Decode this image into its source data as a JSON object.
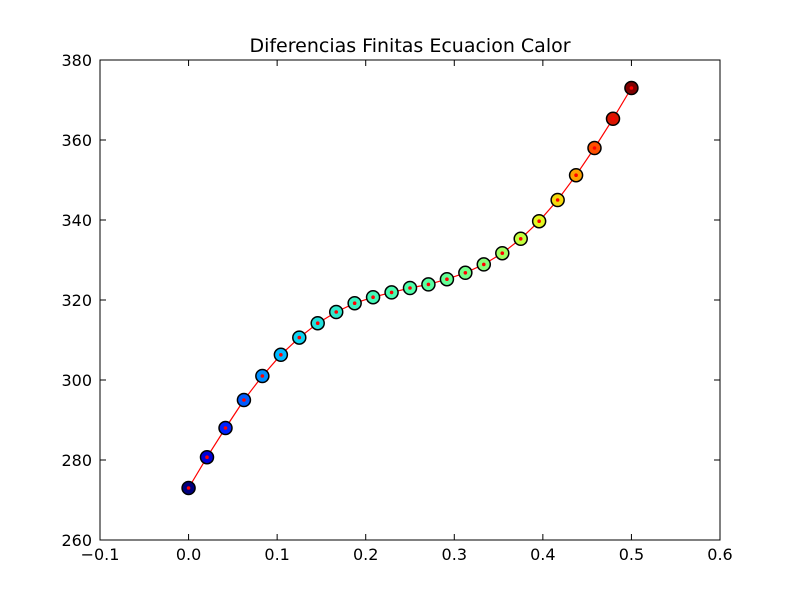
{
  "chart_data": {
    "type": "line",
    "title": "Diferencias Finitas Ecuacion Calor",
    "xlabel": "",
    "ylabel": "",
    "xlim": [
      -0.1,
      0.6
    ],
    "ylim": [
      260,
      380
    ],
    "xticks": [
      -0.1,
      0.0,
      0.1,
      0.2,
      0.3,
      0.4,
      0.5,
      0.6
    ],
    "yticks": [
      260,
      280,
      300,
      320,
      340,
      360,
      380
    ],
    "xtick_labels": [
      "−0.1",
      "0.0",
      "0.1",
      "0.2",
      "0.3",
      "0.4",
      "0.5",
      "0.6"
    ],
    "ytick_labels": [
      "260",
      "280",
      "300",
      "320",
      "340",
      "360",
      "380"
    ],
    "grid": false,
    "line_color": "#ff0000",
    "series": [
      {
        "x": [
          0.0,
          0.0208,
          0.0417,
          0.0625,
          0.0833,
          0.1042,
          0.125,
          0.1458,
          0.1667,
          0.1875,
          0.2083,
          0.2292,
          0.25,
          0.2708,
          0.2917,
          0.3125,
          0.3333,
          0.3542,
          0.375,
          0.3958,
          0.4167,
          0.4375,
          0.4583,
          0.4792,
          0.5
        ],
        "y": [
          273.0,
          280.7,
          288.0,
          295.0,
          301.0,
          306.3,
          310.6,
          314.2,
          317.0,
          319.2,
          320.7,
          321.9,
          323.0,
          323.9,
          325.2,
          326.8,
          328.9,
          331.7,
          335.3,
          339.7,
          345.0,
          351.2,
          358.0,
          365.3,
          373.0
        ]
      }
    ]
  }
}
